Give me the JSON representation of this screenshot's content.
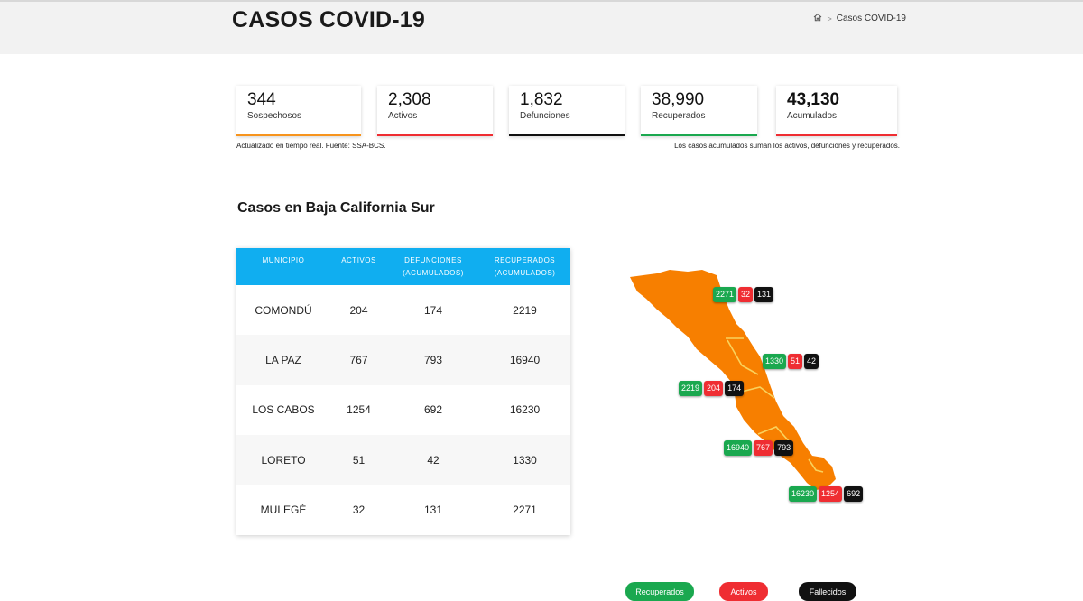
{
  "header": {
    "title": "CASOS COVID-19",
    "breadcrumb": {
      "current": "Casos COVID-19",
      "home_icon": "home-icon",
      "separator": ">"
    }
  },
  "stats": [
    {
      "value": "344",
      "label": "Sospechosos",
      "color": "#f7941d"
    },
    {
      "value": "2,308",
      "label": "Activos",
      "color": "#ef2d32"
    },
    {
      "value": "1,832",
      "label": "Defunciones",
      "color": "#111111"
    },
    {
      "value": "38,990",
      "label": "Recuperados",
      "color": "#1aa84f"
    },
    {
      "value": "43,130",
      "label": "Acumulados",
      "color": "#ef2d32"
    }
  ],
  "notes": {
    "left": "Actualizado en tiempo real. Fuente: SSA-BCS.",
    "right": "Los casos acumulados suman los activos, defunciones y recuperados."
  },
  "section_title": "Casos en Baja California Sur",
  "table": {
    "header_color": "#10aef0",
    "columns": [
      {
        "line1": "MUNICIPIO",
        "line2": ""
      },
      {
        "line1": "ACTIVOS",
        "line2": ""
      },
      {
        "line1": "DEFUNCIONES",
        "line2": "(ACUMULADOS)"
      },
      {
        "line1": "RECUPERADOS",
        "line2": "(ACUMULADOS)"
      }
    ],
    "rows": [
      {
        "municipio": "COMONDÚ",
        "activos": "204",
        "defunciones": "174",
        "recuperados": "2219"
      },
      {
        "municipio": "LA PAZ",
        "activos": "767",
        "defunciones": "793",
        "recuperados": "16940"
      },
      {
        "municipio": "LOS CABOS",
        "activos": "1254",
        "defunciones": "692",
        "recuperados": "16230"
      },
      {
        "municipio": "LORETO",
        "activos": "51",
        "defunciones": "42",
        "recuperados": "1330"
      },
      {
        "municipio": "MULEGÉ",
        "activos": "32",
        "defunciones": "131",
        "recuperados": "2271"
      }
    ]
  },
  "map": {
    "fill_color": "#f77f00",
    "border_color": "#f9d25c",
    "badges": {
      "mulege": {
        "recuperados": "2271",
        "activos": "32",
        "fallecidos": "131"
      },
      "loreto": {
        "recuperados": "1330",
        "activos": "51",
        "fallecidos": "42"
      },
      "comondu": {
        "recuperados": "2219",
        "activos": "204",
        "fallecidos": "174"
      },
      "lapaz": {
        "recuperados": "16940",
        "activos": "767",
        "fallecidos": "793"
      },
      "loscabos": {
        "recuperados": "16230",
        "activos": "1254",
        "fallecidos": "692"
      }
    }
  },
  "legend": {
    "recuperados": "Recuperados",
    "activos": "Activos",
    "fallecidos": "Fallecidos",
    "colors": {
      "recuperados": "#1aa84f",
      "activos": "#ef2d32",
      "fallecidos": "#111111"
    }
  }
}
